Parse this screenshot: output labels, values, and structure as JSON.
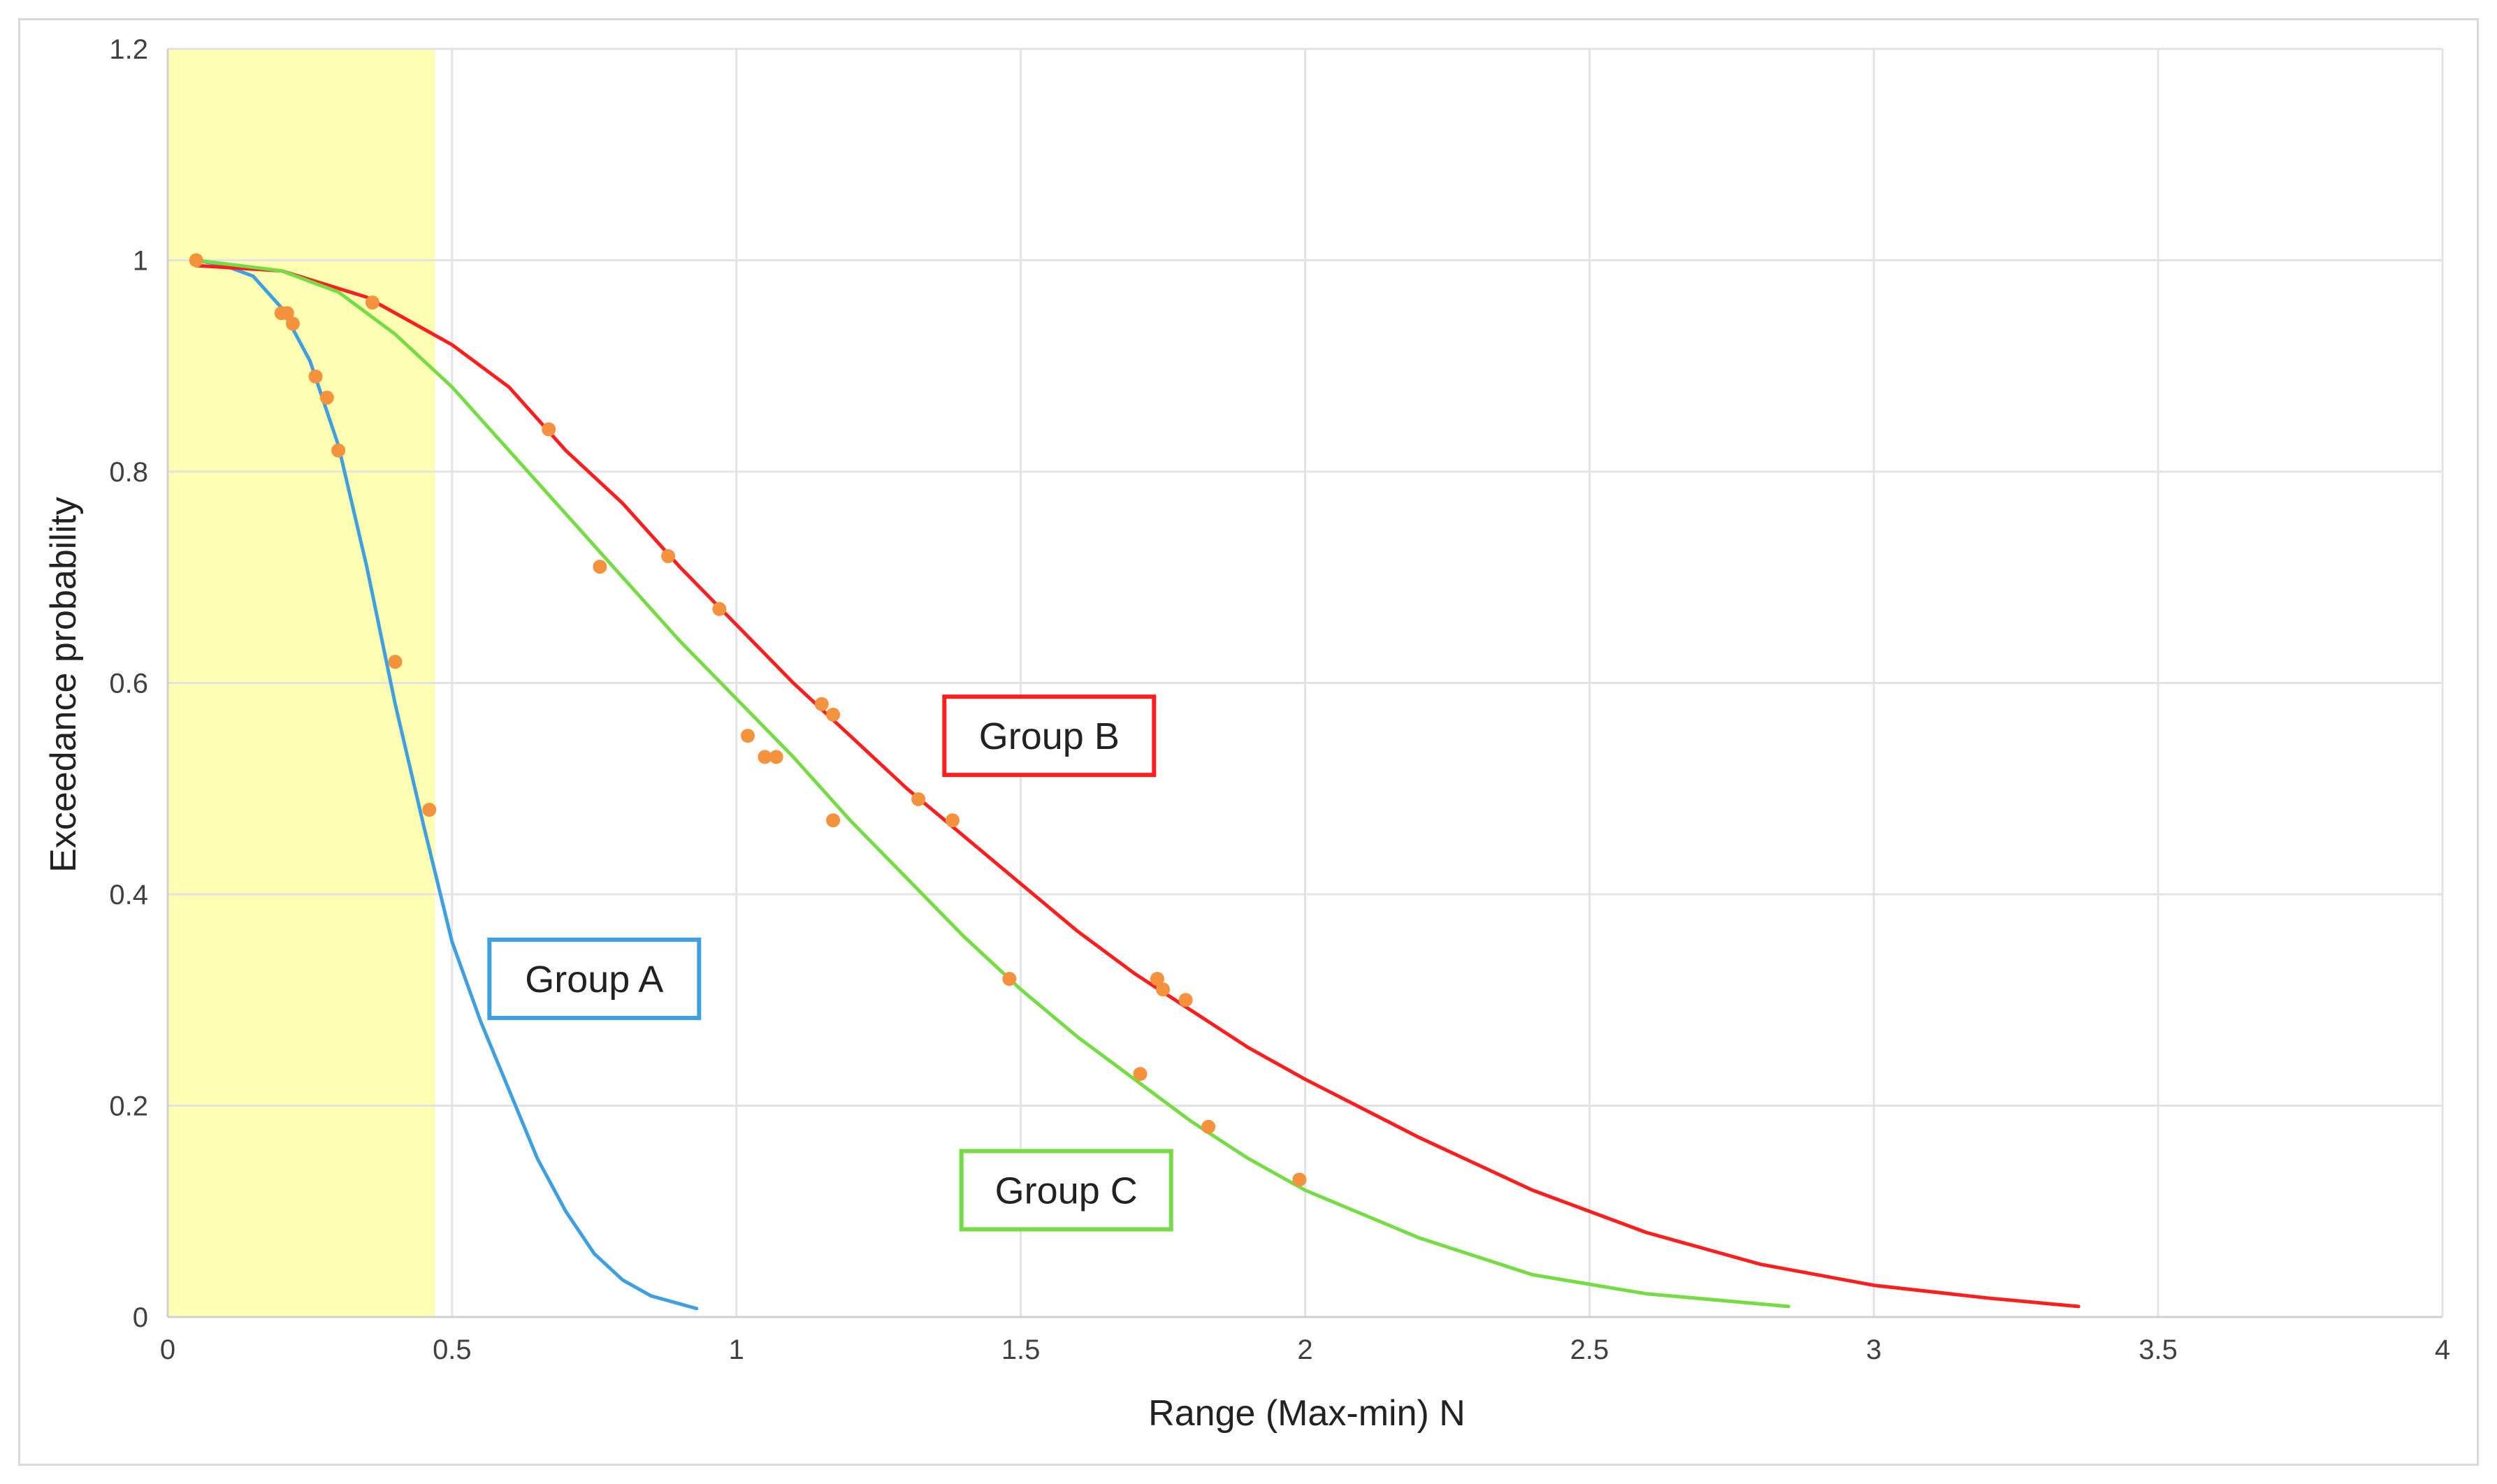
{
  "chart_data": {
    "type": "scatter",
    "title": "",
    "xlabel": "Range (Max-min) N",
    "ylabel": "Exceedance probability",
    "xlim": [
      0,
      4
    ],
    "ylim": [
      0,
      1.2
    ],
    "x_ticks": [
      "0",
      "0.5",
      "1",
      "1.5",
      "2",
      "2.5",
      "3",
      "3.5",
      "4"
    ],
    "y_ticks": [
      "0",
      "0.2",
      "0.4",
      "0.6",
      "0.8",
      "1",
      "1.2"
    ],
    "grid": true,
    "highlight_band": {
      "x_from": 0,
      "x_to": 0.47,
      "color": "#ffffb3"
    },
    "marker_color": "#f5923e",
    "series": [
      {
        "name": "Group A",
        "color": "#3ea0e0",
        "label_box": {
          "x": 0.75,
          "y": 0.32
        },
        "curve": [
          [
            0.05,
            1.0
          ],
          [
            0.1,
            0.995
          ],
          [
            0.15,
            0.985
          ],
          [
            0.2,
            0.955
          ],
          [
            0.25,
            0.905
          ],
          [
            0.3,
            0.825
          ],
          [
            0.35,
            0.71
          ],
          [
            0.4,
            0.58
          ],
          [
            0.45,
            0.465
          ],
          [
            0.5,
            0.355
          ],
          [
            0.55,
            0.28
          ],
          [
            0.6,
            0.215
          ],
          [
            0.65,
            0.15
          ],
          [
            0.7,
            0.1
          ],
          [
            0.75,
            0.06
          ],
          [
            0.8,
            0.035
          ],
          [
            0.85,
            0.02
          ],
          [
            0.93,
            0.008
          ]
        ],
        "points": [
          [
            0.05,
            1.0
          ],
          [
            0.2,
            0.95
          ],
          [
            0.21,
            0.95
          ],
          [
            0.22,
            0.94
          ],
          [
            0.26,
            0.89
          ],
          [
            0.28,
            0.87
          ],
          [
            0.3,
            0.82
          ],
          [
            0.4,
            0.62
          ],
          [
            0.46,
            0.48
          ]
        ]
      },
      {
        "name": "Group B",
        "color": "#ff1e1e",
        "label_box": {
          "x": 1.55,
          "y": 0.55
        },
        "curve": [
          [
            0.05,
            0.995
          ],
          [
            0.2,
            0.99
          ],
          [
            0.35,
            0.965
          ],
          [
            0.5,
            0.92
          ],
          [
            0.6,
            0.88
          ],
          [
            0.7,
            0.82
          ],
          [
            0.8,
            0.77
          ],
          [
            0.9,
            0.71
          ],
          [
            1.0,
            0.655
          ],
          [
            1.1,
            0.6
          ],
          [
            1.2,
            0.55
          ],
          [
            1.3,
            0.5
          ],
          [
            1.4,
            0.455
          ],
          [
            1.5,
            0.41
          ],
          [
            1.6,
            0.365
          ],
          [
            1.7,
            0.325
          ],
          [
            1.8,
            0.29
          ],
          [
            1.9,
            0.255
          ],
          [
            2.0,
            0.225
          ],
          [
            2.2,
            0.17
          ],
          [
            2.4,
            0.12
          ],
          [
            2.6,
            0.08
          ],
          [
            2.8,
            0.05
          ],
          [
            3.0,
            0.03
          ],
          [
            3.2,
            0.018
          ],
          [
            3.36,
            0.01
          ]
        ],
        "points": [
          [
            0.36,
            0.96
          ],
          [
            0.67,
            0.84
          ],
          [
            0.88,
            0.72
          ],
          [
            0.97,
            0.67
          ],
          [
            1.15,
            0.58
          ],
          [
            1.17,
            0.57
          ],
          [
            1.32,
            0.49
          ],
          [
            1.38,
            0.47
          ],
          [
            1.74,
            0.32
          ],
          [
            1.75,
            0.31
          ],
          [
            1.79,
            0.3
          ]
        ]
      },
      {
        "name": "Group C",
        "color": "#76dc45",
        "label_box": {
          "x": 1.58,
          "y": 0.12
        },
        "curve": [
          [
            0.05,
            1.0
          ],
          [
            0.2,
            0.99
          ],
          [
            0.3,
            0.97
          ],
          [
            0.4,
            0.93
          ],
          [
            0.5,
            0.88
          ],
          [
            0.6,
            0.82
          ],
          [
            0.7,
            0.76
          ],
          [
            0.8,
            0.7
          ],
          [
            0.9,
            0.64
          ],
          [
            1.0,
            0.585
          ],
          [
            1.1,
            0.53
          ],
          [
            1.2,
            0.47
          ],
          [
            1.3,
            0.415
          ],
          [
            1.4,
            0.36
          ],
          [
            1.5,
            0.31
          ],
          [
            1.6,
            0.265
          ],
          [
            1.7,
            0.225
          ],
          [
            1.8,
            0.185
          ],
          [
            1.9,
            0.15
          ],
          [
            2.0,
            0.12
          ],
          [
            2.2,
            0.075
          ],
          [
            2.4,
            0.04
          ],
          [
            2.6,
            0.022
          ],
          [
            2.85,
            0.01
          ]
        ],
        "points": [
          [
            0.76,
            0.71
          ],
          [
            1.02,
            0.55
          ],
          [
            1.05,
            0.53
          ],
          [
            1.07,
            0.53
          ],
          [
            1.17,
            0.47
          ],
          [
            1.48,
            0.32
          ],
          [
            1.71,
            0.23
          ],
          [
            1.83,
            0.18
          ],
          [
            1.99,
            0.13
          ]
        ]
      }
    ]
  }
}
